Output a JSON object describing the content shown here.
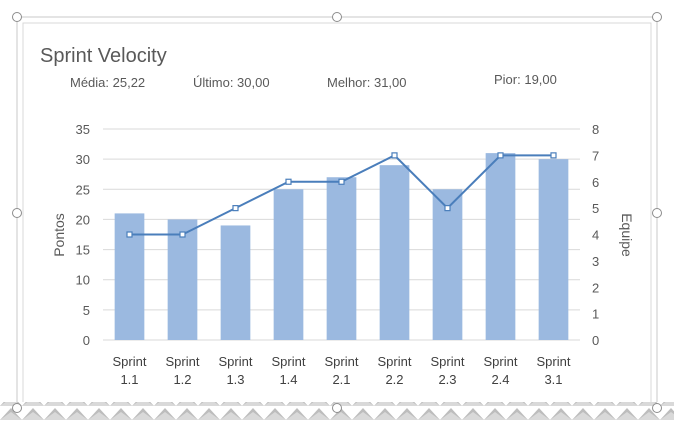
{
  "chart_data": {
    "type": "bar",
    "title": "Sprint Velocity",
    "stats": {
      "media": "Média: 25,22",
      "ultimo": "Último: 30,00",
      "melhor": "Melhor: 31,00",
      "pior": "Pior: 19,00"
    },
    "categories": [
      [
        "Sprint",
        "1.1"
      ],
      [
        "Sprint",
        "1.2"
      ],
      [
        "Sprint",
        "1.3"
      ],
      [
        "Sprint",
        "1.4"
      ],
      [
        "Sprint",
        "2.1"
      ],
      [
        "Sprint",
        "2.2"
      ],
      [
        "Sprint",
        "2.3"
      ],
      [
        "Sprint",
        "2.4"
      ],
      [
        "Sprint",
        "3.1"
      ]
    ],
    "series": [
      {
        "type": "bar",
        "axis": "left",
        "color": "#9bb9e0",
        "values": [
          21,
          20,
          19,
          25,
          27,
          29,
          25,
          31,
          30
        ]
      },
      {
        "type": "line",
        "axis": "right",
        "color": "#4a7ebb",
        "values": [
          4,
          4,
          5,
          6,
          6,
          7,
          5,
          7,
          7
        ]
      }
    ],
    "ylabel": "Pontos",
    "y2label": "Equipe",
    "ylim": [
      0,
      35
    ],
    "yticks": [
      "0",
      "5",
      "10",
      "15",
      "20",
      "25",
      "30",
      "35"
    ],
    "y2lim": [
      0,
      8
    ],
    "y2ticks": [
      "0",
      "1",
      "2",
      "3",
      "4",
      "5",
      "6",
      "7",
      "8"
    ],
    "grid": true,
    "legend": "none"
  }
}
